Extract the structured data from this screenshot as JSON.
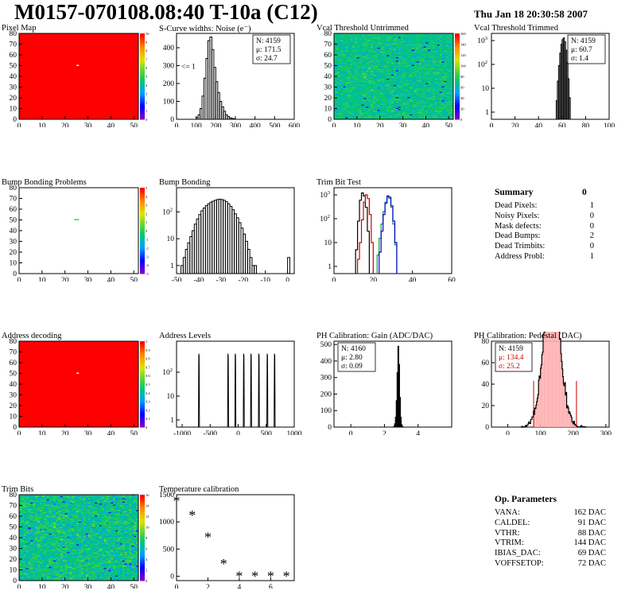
{
  "header": {
    "title": "M0157-070108.08:40 T-10a (C12)",
    "date": "Thu Jan 18 20:30:58 2007"
  },
  "colors": {
    "map_red": "#ff0000",
    "hist_line": "#000000",
    "red": "#cc0000",
    "green": "#00aa00",
    "blue": "#0000cc"
  },
  "chart_data": [
    {
      "id": "pixel-map",
      "type": "heatmap",
      "title": "Pixel Map",
      "xlim": [
        0,
        52
      ],
      "ylim": [
        0,
        80
      ],
      "xticks": [
        0,
        10,
        20,
        30,
        40,
        50
      ],
      "yticks": [
        0,
        10,
        20,
        30,
        40,
        50,
        60,
        70,
        80
      ],
      "fill_color": "#ff0000",
      "value": 10,
      "colorbar": {
        "min": 0,
        "max": 10,
        "ticks": [
          0,
          1,
          2,
          3,
          4,
          5,
          6,
          7,
          8,
          9,
          10
        ]
      },
      "markers": [
        {
          "x": 25,
          "y": 50,
          "color": "#ffffff"
        }
      ]
    },
    {
      "id": "scurve-widths",
      "type": "bar",
      "title": "S-Curve widths: Noise (e⁻)",
      "xlim": [
        0,
        600
      ],
      "ylim": [
        0,
        480
      ],
      "log": false,
      "xticks": [
        0,
        100,
        200,
        300,
        400,
        500,
        600
      ],
      "yticks": [
        0,
        100,
        200,
        300,
        400
      ],
      "stats": [
        "N: 4159",
        "μ: 171.5",
        "σ: 24.7"
      ],
      "annotation": "<= 1",
      "bins": [
        [
          100,
          10
        ],
        [
          110,
          25
        ],
        [
          120,
          60
        ],
        [
          130,
          130
        ],
        [
          140,
          230
        ],
        [
          150,
          340
        ],
        [
          160,
          440
        ],
        [
          170,
          460
        ],
        [
          180,
          390
        ],
        [
          190,
          290
        ],
        [
          200,
          210
        ],
        [
          210,
          150
        ],
        [
          220,
          100
        ],
        [
          230,
          70
        ],
        [
          240,
          45
        ],
        [
          250,
          25
        ],
        [
          260,
          15
        ],
        [
          270,
          8
        ],
        [
          280,
          5
        ],
        [
          290,
          3
        ]
      ],
      "bin_width": 10
    },
    {
      "id": "vcal-untrimmed",
      "type": "heatmap",
      "title": "Vcal Threshold Untrimmed",
      "xlim": [
        0,
        52
      ],
      "ylim": [
        0,
        80
      ],
      "xticks": [
        0,
        10,
        20,
        30,
        40,
        50
      ],
      "yticks": [
        0,
        10,
        20,
        30,
        40,
        50,
        60,
        70,
        80
      ],
      "mean": 70,
      "spread": 22,
      "colorbar": {
        "min": 0,
        "max": 160,
        "ticks": [
          0,
          20,
          40,
          60,
          80,
          100,
          120,
          140,
          160
        ]
      }
    },
    {
      "id": "vcal-trimmed",
      "type": "bar",
      "title": "Vcal Threshold Trimmed",
      "xlim": [
        0,
        100
      ],
      "ylim": [
        0.5,
        2000
      ],
      "log": true,
      "xticks": [
        0,
        20,
        40,
        60,
        80,
        100
      ],
      "yticks": [
        1,
        10,
        100,
        1000
      ],
      "stats": [
        "N: 4159",
        "μ: 60.7",
        "σ: 1.4"
      ],
      "bins": [
        [
          55,
          3
        ],
        [
          56,
          20
        ],
        [
          57,
          90
        ],
        [
          58,
          300
        ],
        [
          59,
          700
        ],
        [
          60,
          1100
        ],
        [
          61,
          1300
        ],
        [
          62,
          900
        ],
        [
          63,
          400
        ],
        [
          64,
          120
        ],
        [
          65,
          25
        ],
        [
          66,
          4
        ]
      ],
      "bin_width": 1
    },
    {
      "id": "bump-bonding-problems",
      "type": "heatmap",
      "title": "Bump Bonding Problems",
      "xlim": [
        0,
        52
      ],
      "ylim": [
        0,
        80
      ],
      "xticks": [
        0,
        10,
        20,
        30,
        40,
        50
      ],
      "yticks": [
        0,
        10,
        20,
        30,
        40,
        50,
        60,
        70,
        80
      ],
      "fill_color": "#ffffff",
      "colorbar": {
        "min": -5,
        "max": 5,
        "ticks": [
          -5,
          -4,
          -3,
          -2,
          -1,
          0,
          1,
          2,
          3,
          4,
          5
        ]
      },
      "markers": [
        {
          "x": 24,
          "y": 50,
          "color": "#33cc33"
        },
        {
          "x": 25,
          "y": 50,
          "color": "#33cc33"
        }
      ]
    },
    {
      "id": "bump-bonding",
      "type": "bar",
      "title": "Bump Bonding",
      "xlim": [
        -50,
        3
      ],
      "ylim": [
        0.5,
        800
      ],
      "log": true,
      "xticks": [
        -50,
        -40,
        -30,
        -20,
        -10,
        0
      ],
      "yticks": [
        1,
        10,
        100
      ],
      "bins": [
        [
          -48,
          1
        ],
        [
          -47,
          2
        ],
        [
          -46,
          4
        ],
        [
          -45,
          7
        ],
        [
          -44,
          12
        ],
        [
          -43,
          20
        ],
        [
          -42,
          35
        ],
        [
          -41,
          55
        ],
        [
          -40,
          80
        ],
        [
          -39,
          110
        ],
        [
          -38,
          140
        ],
        [
          -37,
          170
        ],
        [
          -36,
          200
        ],
        [
          -35,
          230
        ],
        [
          -34,
          250
        ],
        [
          -33,
          270
        ],
        [
          -32,
          290
        ],
        [
          -31,
          300
        ],
        [
          -30,
          290
        ],
        [
          -29,
          270
        ],
        [
          -28,
          240
        ],
        [
          -27,
          200
        ],
        [
          -26,
          160
        ],
        [
          -25,
          120
        ],
        [
          -24,
          85
        ],
        [
          -23,
          60
        ],
        [
          -22,
          40
        ],
        [
          -21,
          25
        ],
        [
          -20,
          15
        ],
        [
          -19,
          8
        ],
        [
          -18,
          4
        ],
        [
          -17,
          2
        ],
        [
          -16,
          1
        ],
        [
          -15,
          1
        ],
        [
          0,
          2
        ]
      ],
      "bin_width": 1
    },
    {
      "id": "trim-bit-test",
      "type": "line",
      "title": "Trim Bit Test",
      "xlim": [
        0,
        60
      ],
      "ylim": [
        0.5,
        2000
      ],
      "log": true,
      "xticks": [
        0,
        20,
        40,
        60
      ],
      "yticks": [
        1,
        10,
        100,
        1000
      ],
      "series": [
        {
          "color": "#000000",
          "bins": [
            [
              11,
              5
            ],
            [
              12,
              80
            ],
            [
              13,
              600
            ],
            [
              14,
              1200
            ],
            [
              15,
              900
            ],
            [
              16,
              300
            ],
            [
              17,
              30
            ]
          ]
        },
        {
          "color": "#cc0000",
          "bins": [
            [
              12,
              2
            ],
            [
              13,
              10
            ],
            [
              14,
              90
            ],
            [
              15,
              500
            ],
            [
              16,
              1000
            ],
            [
              17,
              700
            ],
            [
              18,
              150
            ],
            [
              19,
              10
            ]
          ]
        },
        {
          "color": "#00aa00",
          "bins": [
            [
              22,
              3
            ],
            [
              23,
              15
            ],
            [
              24,
              60
            ],
            [
              25,
              200
            ],
            [
              26,
              500
            ],
            [
              27,
              800
            ],
            [
              28,
              700
            ],
            [
              29,
              300
            ],
            [
              30,
              60
            ],
            [
              31,
              8
            ]
          ]
        },
        {
          "color": "#0000cc",
          "bins": [
            [
              23,
              4
            ],
            [
              24,
              30
            ],
            [
              25,
              150
            ],
            [
              26,
              450
            ],
            [
              27,
              900
            ],
            [
              28,
              800
            ],
            [
              29,
              350
            ],
            [
              30,
              80
            ],
            [
              31,
              10
            ]
          ]
        }
      ]
    },
    {
      "id": "address-decoding",
      "type": "heatmap",
      "title": "Address decoding",
      "xlim": [
        0,
        52
      ],
      "ylim": [
        0,
        80
      ],
      "xticks": [
        0,
        10,
        20,
        30,
        40,
        50
      ],
      "yticks": [
        0,
        10,
        20,
        30,
        40,
        50,
        60,
        70,
        80
      ],
      "fill_color": "#ff0000",
      "value": 1,
      "colorbar": {
        "min": 0,
        "max": 1,
        "ticks": [
          0,
          0.1,
          0.2,
          0.3,
          0.4,
          0.5,
          0.6,
          0.7,
          0.8,
          0.9,
          1
        ]
      },
      "markers": [
        {
          "x": 25,
          "y": 50,
          "color": "#ffffff"
        }
      ]
    },
    {
      "id": "address-levels",
      "type": "bar",
      "title": "Address Levels",
      "xlim": [
        -1100,
        1000
      ],
      "ylim": [
        0.5,
        2000
      ],
      "log": true,
      "xticks": [
        -1000,
        -500,
        0,
        500,
        1000
      ],
      "yticks": [
        1,
        10,
        100
      ],
      "peaks": [
        -700,
        -180,
        -50,
        100,
        230,
        370,
        520,
        650
      ],
      "peak_height": 600
    },
    {
      "id": "ph-gain",
      "type": "bar",
      "title": "PH Calibration: Gain (ADC/DAC)",
      "xlim": [
        -1,
        6
      ],
      "ylim": [
        0,
        520
      ],
      "log": false,
      "xticks": [
        0,
        2,
        4
      ],
      "yticks": [
        0,
        100,
        200,
        300,
        400,
        500
      ],
      "stats": [
        "N: 4160",
        "μ: 2.80",
        "σ: 0.09"
      ],
      "bins": [
        [
          2.55,
          5
        ],
        [
          2.6,
          20
        ],
        [
          2.65,
          60
        ],
        [
          2.7,
          160
        ],
        [
          2.75,
          330
        ],
        [
          2.8,
          490
        ],
        [
          2.85,
          380
        ],
        [
          2.9,
          180
        ],
        [
          2.95,
          60
        ],
        [
          3.0,
          15
        ],
        [
          3.05,
          4
        ]
      ],
      "bin_width": 0.05
    },
    {
      "id": "ph-pedestal",
      "type": "bar",
      "title": "PH Calibration: Pedestal (DAC)",
      "xlim": [
        -50,
        310
      ],
      "ylim": [
        0,
        80
      ],
      "log": false,
      "xticks": [
        0,
        100,
        200,
        300
      ],
      "yticks": [
        0,
        20,
        40,
        60,
        80
      ],
      "stats": [
        "N: 4159",
        "μ: 134.4",
        "σ: 25.2"
      ],
      "mu": 134.4,
      "sigma": 25.2,
      "n": 4159,
      "bin_width": 2,
      "cut_lines": [
        79,
        210
      ]
    },
    {
      "id": "trim-bits",
      "type": "heatmap",
      "title": "Trim Bits",
      "xlim": [
        0,
        52
      ],
      "ylim": [
        0,
        80
      ],
      "xticks": [
        0,
        10,
        20,
        30,
        40,
        50
      ],
      "yticks": [
        0,
        10,
        20,
        30,
        40,
        50,
        60,
        70,
        80
      ],
      "mean": 7,
      "spread": 3,
      "colorbar": {
        "min": 0,
        "max": 16,
        "ticks": [
          0,
          2,
          4,
          6,
          8,
          10,
          12,
          14,
          16
        ]
      }
    },
    {
      "id": "temperature-calibration",
      "type": "scatter",
      "title": "Temperature calibration",
      "xlim": [
        0,
        7.5
      ],
      "ylim": [
        -80,
        1500
      ],
      "log": false,
      "xticks": [
        0,
        2,
        4,
        6
      ],
      "yticks": [
        0,
        500,
        1000,
        1500
      ],
      "x": [
        0,
        1,
        2,
        3,
        4,
        5,
        6,
        7
      ],
      "y": [
        1380,
        1120,
        720,
        230,
        0,
        0,
        0,
        0
      ]
    }
  ],
  "summary": {
    "title": "Summary",
    "title_value": "0",
    "rows": [
      {
        "label": "Dead Pixels:",
        "value": "1"
      },
      {
        "label": "Noisy Pixels:",
        "value": "0"
      },
      {
        "label": "Mask defects:",
        "value": "0"
      },
      {
        "label": "Dead Bumps:",
        "value": "2"
      },
      {
        "label": "Dead Trimbits:",
        "value": "0"
      },
      {
        "label": "Address Probl:",
        "value": "1"
      }
    ]
  },
  "op_params": {
    "title": "Op. Parameters",
    "rows": [
      {
        "label": "VANA:",
        "value": "162 DAC"
      },
      {
        "label": "CALDEL:",
        "value": "91 DAC"
      },
      {
        "label": "VTHR:",
        "value": "88 DAC"
      },
      {
        "label": "VTRIM:",
        "value": "144 DAC"
      },
      {
        "label": "IBIAS_DAC:",
        "value": "69 DAC"
      },
      {
        "label": "VOFFSETOP:",
        "value": "72 DAC"
      }
    ]
  }
}
